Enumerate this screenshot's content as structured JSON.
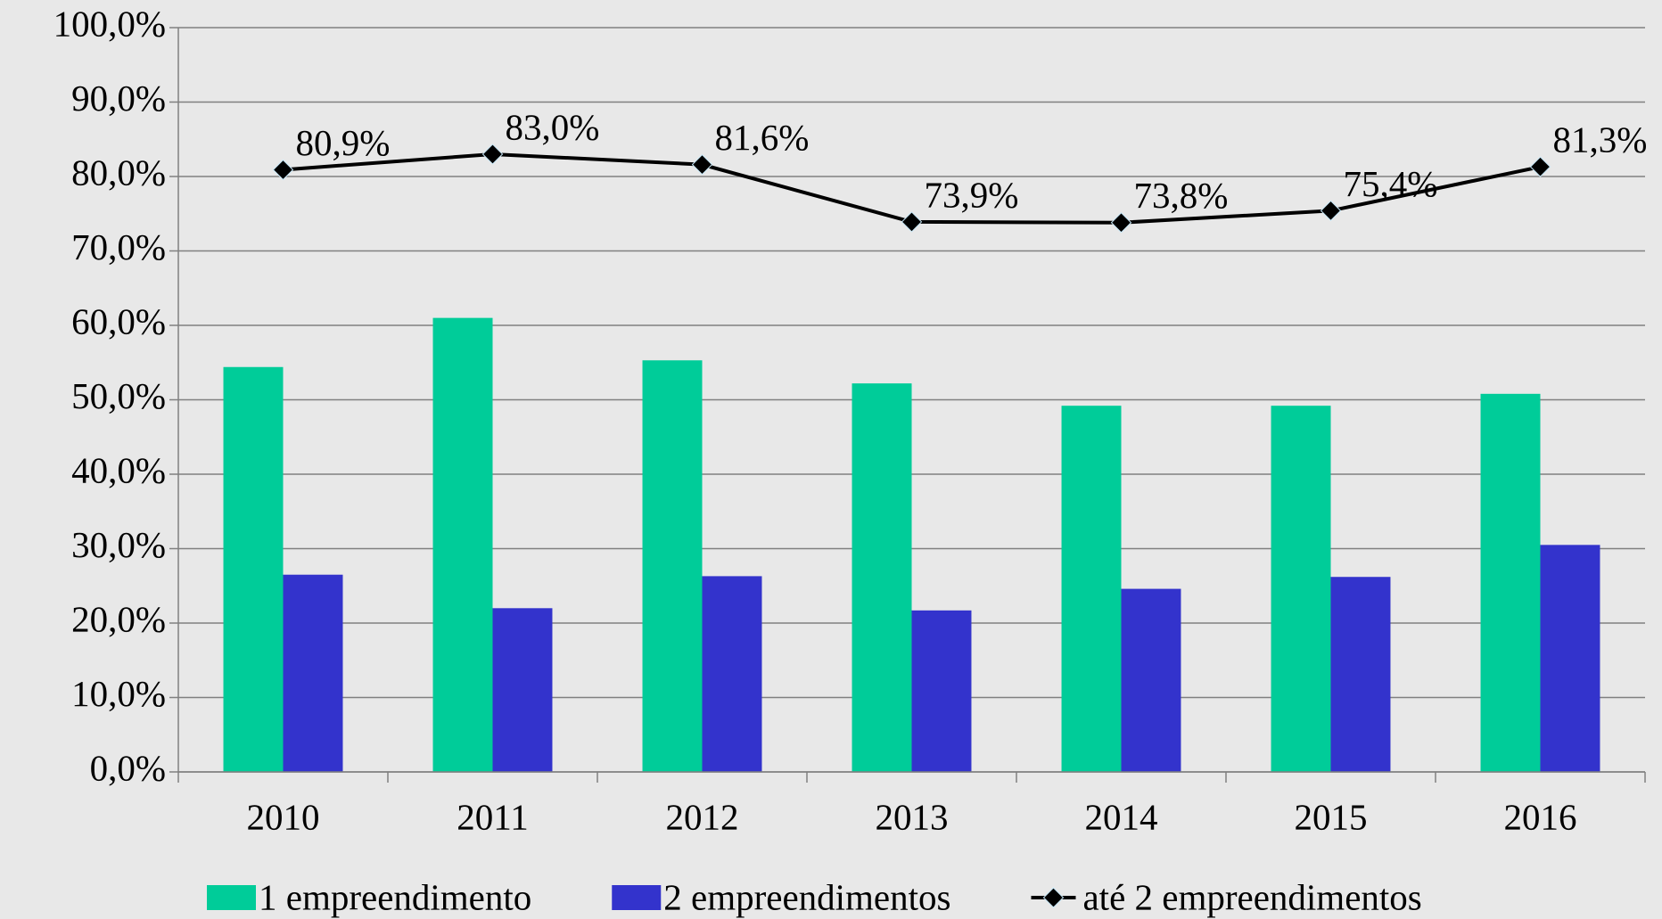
{
  "chart_data": {
    "type": "bar",
    "categories": [
      "2010",
      "2011",
      "2012",
      "2013",
      "2014",
      "2015",
      "2016"
    ],
    "series": [
      {
        "name": "1 empreendimento",
        "color": "#00cc99",
        "values": [
          54.4,
          61.0,
          55.3,
          52.2,
          49.2,
          49.2,
          50.8
        ]
      },
      {
        "name": "2 empreendimentos",
        "color": "#3333cc",
        "values": [
          26.5,
          22.0,
          26.3,
          21.7,
          24.6,
          26.2,
          30.5
        ]
      },
      {
        "name": "até 2 empreendimentos",
        "color": "#000000",
        "type": "line",
        "values": [
          80.9,
          83.0,
          81.6,
          73.9,
          73.8,
          75.4,
          81.3
        ],
        "value_labels": [
          "80,9%",
          "83,0%",
          "81,6%",
          "73,9%",
          "73,8%",
          "75,4%",
          "81,3%"
        ]
      }
    ],
    "ylim": [
      0,
      100
    ],
    "yticks": [
      {
        "value": 0,
        "label": "0,0%"
      },
      {
        "value": 10,
        "label": "10,0%"
      },
      {
        "value": 20,
        "label": "20,0%"
      },
      {
        "value": 30,
        "label": "30,0%"
      },
      {
        "value": 40,
        "label": "40,0%"
      },
      {
        "value": 50,
        "label": "50,0%"
      },
      {
        "value": 60,
        "label": "60,0%"
      },
      {
        "value": 70,
        "label": "70,0%"
      },
      {
        "value": 80,
        "label": "80,0%"
      },
      {
        "value": 90,
        "label": "90,0%"
      },
      {
        "value": 100,
        "label": "100,0%"
      }
    ],
    "grid": true,
    "legend": "bottom"
  }
}
